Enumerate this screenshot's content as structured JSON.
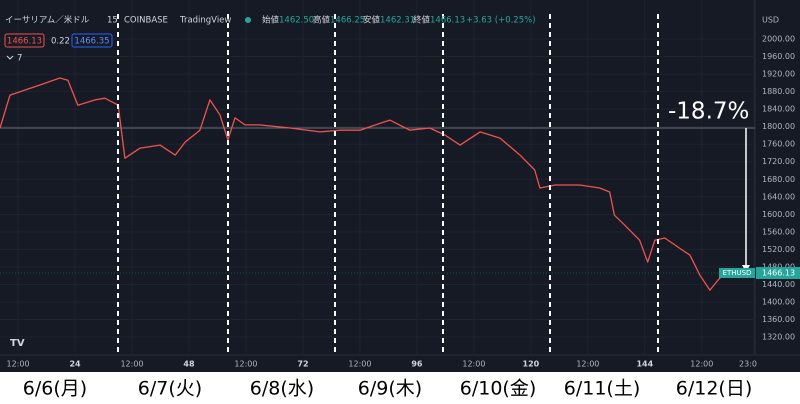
{
  "header": {
    "symbol": "イーサリアム／米ドル",
    "interval": "15",
    "exchange": "COINBASE",
    "brand": "TradingView",
    "ohlc": [
      {
        "label": "始値",
        "value": "1462.50"
      },
      {
        "label": "高値",
        "value": "1466.25"
      },
      {
        "label": "安値",
        "value": "1462.31"
      },
      {
        "label": "終値",
        "value": "1466.13"
      }
    ],
    "change": "+3.63 (+0.25%)",
    "bid": "1466.13",
    "spread": "0.22",
    "ask": "1466.35",
    "indicators": "7"
  },
  "chart_data": {
    "type": "line",
    "color": "#ef5350",
    "y_unit": "USD",
    "grid": true,
    "x": [
      8.2,
      10.3,
      16.6,
      20.8,
      22.5,
      24.6,
      28.2,
      30.3,
      33.1,
      34.5,
      37.7,
      41.9,
      45.1,
      47.2,
      50.3,
      52.4,
      54.5,
      56.2,
      57.7,
      59.8,
      62.9,
      69.3,
      75.6,
      79.8,
      84,
      90.3,
      94.5,
      98.7,
      101.9,
      105.1,
      109.3,
      113.5,
      117.7,
      120.8,
      121.9,
      125.1,
      130.3,
      134.5,
      136.6,
      137.6,
      139.7,
      142.9,
      144.6,
      146.1,
      148.2,
      151.3,
      153.5,
      155.6,
      157.7,
      159.4,
      160.8
    ],
    "values": [
      1797,
      1872,
      1895,
      1911,
      1906,
      1849,
      1861,
      1865,
      1849,
      1728,
      1751,
      1758,
      1735,
      1765,
      1792,
      1861,
      1827,
      1770,
      1820,
      1804,
      1804,
      1797,
      1788,
      1792,
      1792,
      1815,
      1792,
      1797,
      1781,
      1758,
      1788,
      1774,
      1735,
      1701,
      1660,
      1667,
      1667,
      1660,
      1651,
      1598,
      1576,
      1541,
      1491,
      1541,
      1546,
      1523,
      1507,
      1461,
      1427,
      1450,
      1466.13
    ],
    "xlim": [
      8.2,
      167.2
    ],
    "ylim": [
      1279,
      2089
    ],
    "xticks": [
      {
        "value": 12,
        "label": "12:00"
      },
      24,
      {
        "value": 36,
        "label": "12:00"
      },
      48,
      {
        "value": 60,
        "label": "12:00"
      },
      72,
      {
        "value": 84,
        "label": "12:00"
      },
      96,
      {
        "value": 108,
        "label": "12:00"
      },
      120,
      {
        "value": 132,
        "label": "12:00"
      },
      144,
      {
        "value": 156,
        "label": "12:00"
      },
      {
        "value": 167,
        "label": "23:0"
      }
    ],
    "yticks": [
      {
        "value": 2000,
        "label": "2000.00"
      },
      {
        "value": 1960,
        "label": "1960.00"
      },
      {
        "value": 1920,
        "label": "1920.00"
      },
      {
        "value": 1880,
        "label": "1880.00"
      },
      {
        "value": 1840,
        "label": "1840.00"
      },
      {
        "value": 1800,
        "label": "1800.00"
      },
      {
        "value": 1760,
        "label": "1760.00"
      },
      {
        "value": 1720,
        "label": "1720.00"
      },
      {
        "value": 1680,
        "label": "1680.00"
      },
      {
        "value": 1640,
        "label": "1640.00"
      },
      {
        "value": 1600,
        "label": "1600.00"
      },
      {
        "value": 1560,
        "label": "1560.00"
      },
      {
        "value": 1520,
        "label": "1520.00"
      },
      {
        "value": 1480,
        "label": "1480.00"
      },
      {
        "value": 1440,
        "label": "1440.00"
      },
      {
        "value": 1400,
        "label": "1400.00"
      },
      {
        "value": 1360,
        "label": "1360.00"
      },
      {
        "value": 1320,
        "label": "1320.00"
      }
    ],
    "hline": 1797,
    "last_price": {
      "symbol": "ETHUSD",
      "value": 1466.13
    },
    "annotation": "-18.7%",
    "date_labels": [
      "6/6(月)",
      "6/7(火)",
      "6/8(水)",
      "6/9(木)",
      "6/10(金)",
      "6/11(土)",
      "6/12(日)"
    ]
  }
}
